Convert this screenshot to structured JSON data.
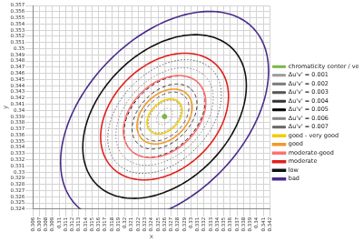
{
  "chart_data": {
    "type": "scatter",
    "x_label": "x",
    "y_label": "y",
    "xlim": [
      0.306,
      0.342
    ],
    "ylim": [
      0.324,
      0.357
    ],
    "xticks": [
      0.306,
      0.307,
      0.308,
      0.309,
      0.31,
      0.311,
      0.312,
      0.313,
      0.314,
      0.315,
      0.316,
      0.317,
      0.318,
      0.319,
      0.32,
      0.321,
      0.322,
      0.323,
      0.324,
      0.325,
      0.326,
      0.327,
      0.328,
      0.329,
      0.33,
      0.331,
      0.332,
      0.333,
      0.334,
      0.335,
      0.336,
      0.337,
      0.338,
      0.339,
      0.34,
      0.341,
      0.342
    ],
    "yticks": [
      0.324,
      0.325,
      0.326,
      0.327,
      0.328,
      0.329,
      0.33,
      0.331,
      0.332,
      0.333,
      0.334,
      0.335,
      0.336,
      0.337,
      0.338,
      0.339,
      0.34,
      0.341,
      0.342,
      0.343,
      0.344,
      0.345,
      0.346,
      0.347,
      0.348,
      0.349,
      0.35,
      0.351,
      0.352,
      0.353,
      0.354,
      0.355,
      0.356,
      0.357
    ],
    "grid": true,
    "legend": "right",
    "series": [
      {
        "name": "chromaticity center / very good",
        "color": "#7ab648",
        "marker": "circle",
        "x": [
          0.326
        ],
        "values": [
          0.339
        ]
      },
      {
        "name": "Δu'v' = 0.001",
        "color": "#9a9a9a",
        "line_style": "dotted",
        "ellipse": {
          "center": [
            0.326,
            0.339
          ],
          "semi_axes": [
            0.0015,
            0.001
          ],
          "angle": 50
        }
      },
      {
        "name": "Δu'v' = 0.002",
        "color": "#7a7a7a",
        "line_style": "dotted",
        "ellipse": {
          "center": [
            0.326,
            0.339
          ],
          "semi_axes": [
            0.003,
            0.002
          ],
          "angle": 50
        }
      },
      {
        "name": "Δu'v' = 0.003",
        "color": "#555555",
        "line_style": "dashed",
        "ellipse": {
          "center": [
            0.326,
            0.339
          ],
          "semi_axes": [
            0.0045,
            0.003
          ],
          "angle": 50
        }
      },
      {
        "name": "Δu'v' = 0.004",
        "color": "#333333",
        "line_style": "dashed",
        "ellipse": {
          "center": [
            0.326,
            0.339
          ],
          "semi_axes": [
            0.006,
            0.004
          ],
          "angle": 50
        }
      },
      {
        "name": "Δu'v' = 0.005",
        "color": "#000000",
        "line_style": "dashed",
        "ellipse": {
          "center": [
            0.326,
            0.339
          ],
          "semi_axes": [
            0.0075,
            0.005
          ],
          "angle": 50
        }
      },
      {
        "name": "Δu'v' = 0.006",
        "color": "#888888",
        "line_style": "dotted",
        "ellipse": {
          "center": [
            0.326,
            0.339
          ],
          "semi_axes": [
            0.009,
            0.006
          ],
          "angle": 50
        }
      },
      {
        "name": "Δu'v' = 0.007",
        "color": "#666666",
        "line_style": "dotted",
        "ellipse": {
          "center": [
            0.326,
            0.339
          ],
          "semi_axes": [
            0.0105,
            0.007
          ],
          "angle": 50
        }
      },
      {
        "name": "good - very good",
        "color": "#f2cc00",
        "line_style": "solid",
        "ellipse": {
          "center": [
            0.326,
            0.339
          ],
          "semi_axes": [
            0.0032,
            0.0022
          ],
          "angle": 50
        }
      },
      {
        "name": "good",
        "color": "#f09a28",
        "line_style": "solid",
        "ellipse": {
          "center": [
            0.326,
            0.339
          ],
          "semi_axes": [
            0.005,
            0.0035
          ],
          "angle": 50
        }
      },
      {
        "name": "moderate-good",
        "color": "#ff7070",
        "line_style": "solid",
        "ellipse": {
          "center": [
            0.326,
            0.339
          ],
          "semi_axes": [
            0.0075,
            0.0052
          ],
          "angle": 50
        }
      },
      {
        "name": "moderate",
        "color": "#e0201b",
        "line_style": "solid",
        "ellipse": {
          "center": [
            0.326,
            0.339
          ],
          "semi_axes": [
            0.0115,
            0.0082
          ],
          "angle": 50
        }
      },
      {
        "name": "low",
        "color": "#111111",
        "line_style": "solid",
        "ellipse": {
          "center": [
            0.326,
            0.339
          ],
          "semi_axes": [
            0.0151,
            0.0101
          ],
          "angle": 50
        }
      },
      {
        "name": "bad",
        "color": "#4b2a8a",
        "line_style": "solid",
        "ellipse": {
          "center": [
            0.326,
            0.339
          ],
          "semi_axes": [
            0.0197,
            0.0123
          ],
          "angle": 50
        }
      }
    ]
  }
}
